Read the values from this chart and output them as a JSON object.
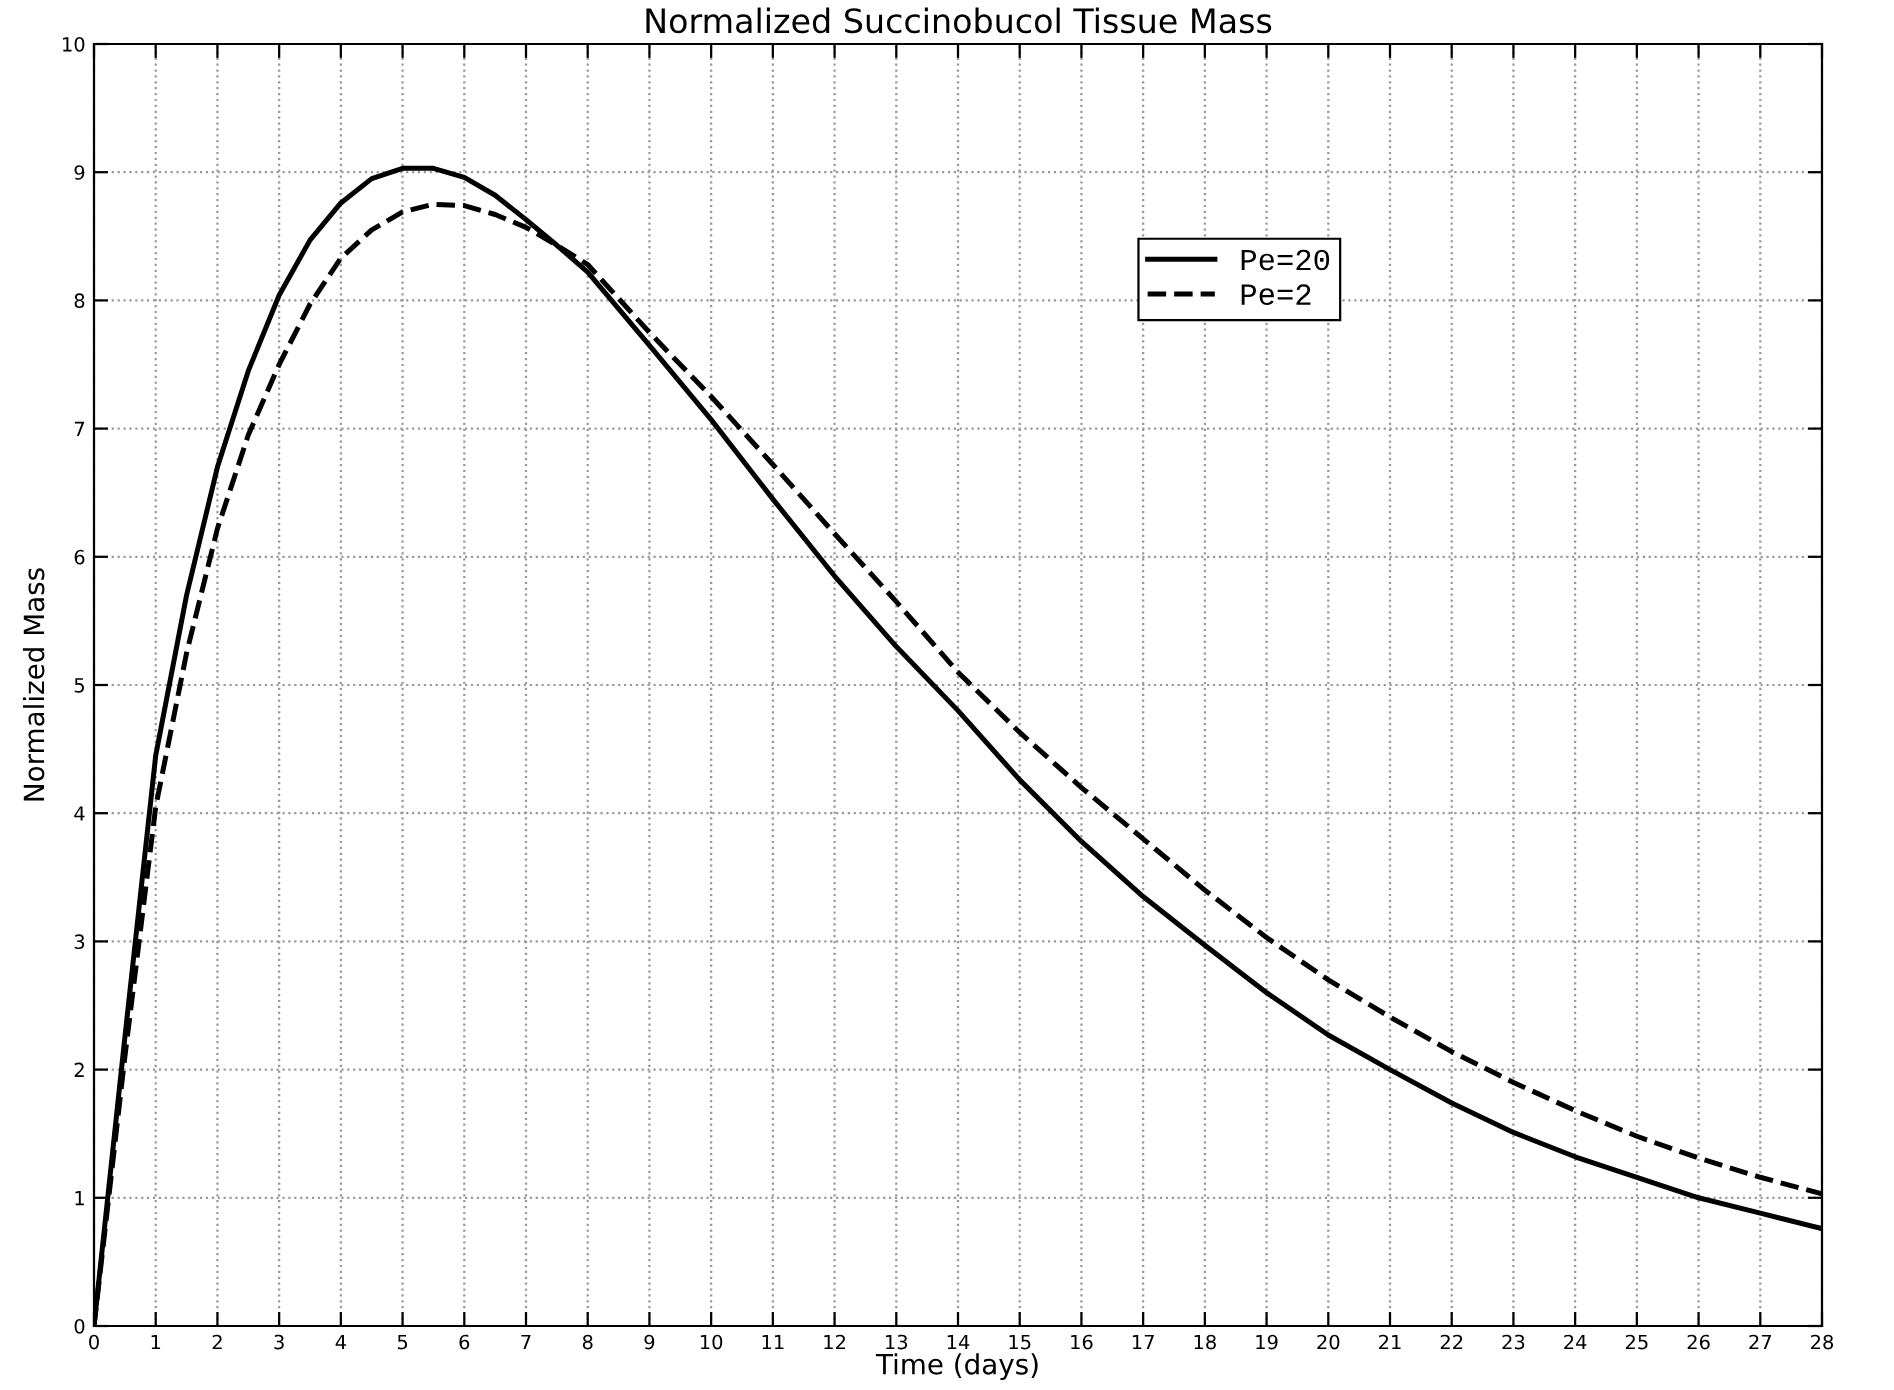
{
  "chart_data": {
    "type": "line",
    "title": "Normalized Succinobucol Tissue Mass",
    "xlabel": "Time (days)",
    "ylabel": "Normalized Mass",
    "x": [
      0,
      0.5,
      1,
      1.5,
      2,
      2.5,
      3,
      3.5,
      4,
      4.5,
      5,
      5.5,
      6,
      6.5,
      7,
      7.5,
      8,
      9,
      10,
      11,
      12,
      13,
      14,
      15,
      16,
      17,
      18,
      19,
      20,
      21,
      22,
      23,
      24,
      25,
      26,
      27,
      28
    ],
    "series": [
      {
        "name": "Pe=20",
        "color": "#000000",
        "line_style": "solid",
        "values": [
          0,
          2.25,
          4.45,
          5.7,
          6.7,
          7.45,
          8.04,
          8.47,
          8.76,
          8.95,
          9.03,
          9.03,
          8.96,
          8.82,
          8.63,
          8.43,
          8.22,
          7.65,
          7.07,
          6.45,
          5.85,
          5.3,
          4.8,
          4.26,
          3.78,
          3.35,
          2.97,
          2.6,
          2.27,
          2.0,
          1.74,
          1.51,
          1.32,
          1.16,
          1.0,
          0.88,
          0.76
        ]
      },
      {
        "name": "Pe=2",
        "color": "#000000",
        "line_style": "dashed",
        "values": [
          0,
          2.1,
          4.05,
          5.25,
          6.22,
          6.95,
          7.5,
          7.97,
          8.33,
          8.55,
          8.69,
          8.75,
          8.74,
          8.67,
          8.57,
          8.43,
          8.28,
          7.75,
          7.25,
          6.72,
          6.18,
          5.65,
          5.1,
          4.63,
          4.2,
          3.8,
          3.4,
          3.03,
          2.7,
          2.41,
          2.14,
          1.9,
          1.68,
          1.48,
          1.31,
          1.16,
          1.03
        ]
      }
    ],
    "xlim": [
      0,
      28
    ],
    "xticks": [
      0,
      1,
      2,
      3,
      4,
      5,
      6,
      7,
      8,
      9,
      10,
      11,
      12,
      13,
      14,
      15,
      16,
      17,
      18,
      19,
      20,
      21,
      22,
      23,
      24,
      25,
      26,
      27,
      28
    ],
    "ylim": [
      0,
      10
    ],
    "yticks": [
      0,
      1,
      2,
      3,
      4,
      5,
      6,
      7,
      8,
      9,
      10
    ],
    "grid": true,
    "legend": "top right",
    "marker": "none"
  }
}
